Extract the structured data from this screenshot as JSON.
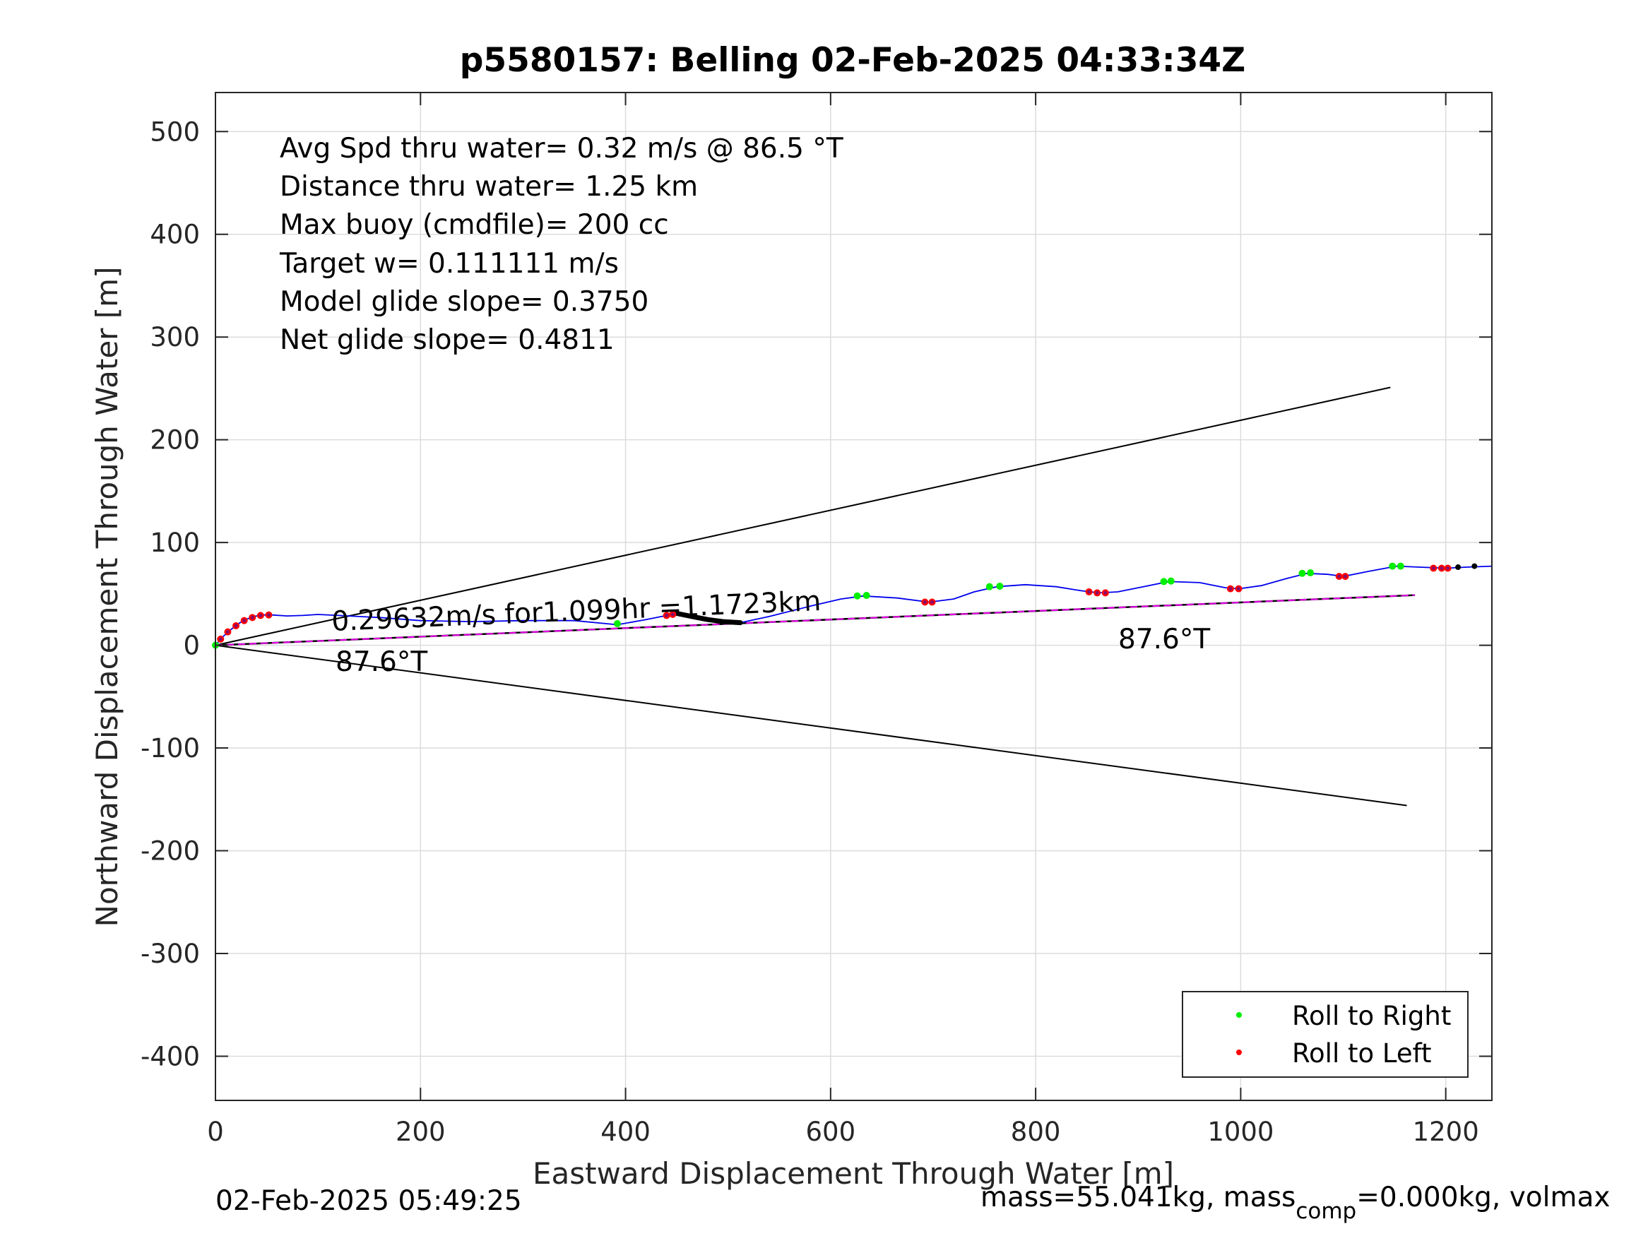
{
  "chart_data": {
    "type": "line",
    "title": "p5580157: Belling 02-Feb-2025 04:33:34Z",
    "xlabel": "Eastward Displacement Through Water [m]",
    "ylabel": "Northward Displacement Through Water [m]",
    "xlim": [
      0,
      1245
    ],
    "ylim": [
      -443,
      538
    ],
    "xticks": [
      0,
      200,
      400,
      600,
      800,
      1000,
      1200
    ],
    "yticks": [
      -400,
      -300,
      -200,
      -100,
      0,
      100,
      200,
      300,
      400,
      500
    ],
    "grid": true,
    "legend_position": "bottom-right",
    "info_lines": [
      "Avg Spd thru water=  0.32 m/s @  86.5 °T",
      "Distance thru water=  1.25 km",
      "Max buoy (cmdfile)= 200 cc",
      "Target w= 0.111111 m/s",
      "Model glide slope= 0.3750",
      "Net glide slope= 0.4811"
    ],
    "annotations": {
      "speed": "0.29632m/s for1.099hr =1.1723km",
      "heading_start": "87.6°T",
      "heading_end": "87.6°T"
    },
    "footer_left": "02-Feb-2025 05:49:25",
    "footer_right": {
      "prefix": "mass=55.041kg, mass",
      "subscript": "comp",
      "suffix": "=0.000kg, volmax"
    },
    "legend": [
      {
        "label": "Roll to Right",
        "color": "#00ee00"
      },
      {
        "label": "Roll to Left",
        "color": "#ff0000"
      }
    ],
    "colors": {
      "track": "#0000ee",
      "mean_heading": "#ee00ee",
      "roll_right": "#00ee00",
      "roll_left": "#ff0000",
      "cone": "#000000"
    },
    "series": [
      {
        "name": "track",
        "x": [
          0,
          8,
          16,
          24,
          32,
          40,
          48,
          55,
          70,
          85,
          100,
          120,
          140,
          160,
          200,
          250,
          300,
          350,
          392,
          420,
          445,
          470,
          490,
          512,
          540,
          580,
          610,
          632,
          665,
          696,
          720,
          740,
          762,
          790,
          820,
          845,
          862,
          880,
          905,
          930,
          960,
          985,
          998,
          1020,
          1045,
          1065,
          1085,
          1100,
          1125,
          1152,
          1175,
          1200,
          1220,
          1245
        ],
        "y": [
          0,
          9,
          16,
          22,
          26,
          28.5,
          29.5,
          29.5,
          28.5,
          29,
          30,
          29,
          28,
          27,
          24,
          23,
          24,
          24,
          20,
          25,
          30,
          27,
          23,
          22,
          28,
          38,
          45,
          48,
          46,
          42,
          45,
          52,
          57,
          59,
          57,
          53,
          51,
          52,
          57,
          62,
          61,
          56,
          55,
          58,
          65,
          70,
          69,
          67,
          72,
          77,
          76,
          75,
          76,
          77
        ]
      },
      {
        "name": "mean heading",
        "x": [
          0,
          1170
        ],
        "y": [
          0,
          48.8
        ]
      },
      {
        "name": "cone upper",
        "x": [
          0,
          1146
        ],
        "y": [
          0,
          251
        ]
      },
      {
        "name": "cone lower",
        "x": [
          0,
          1162
        ],
        "y": [
          0,
          -156
        ]
      },
      {
        "name": "black segment",
        "x": [
          450,
          465,
          480,
          495,
          512
        ],
        "y": [
          31,
          28,
          25,
          23,
          22
        ]
      }
    ],
    "roll_right": [
      [
        0,
        0
      ],
      [
        392,
        21
      ],
      [
        626,
        48
      ],
      [
        635,
        48.5
      ],
      [
        755,
        57
      ],
      [
        765,
        57.5
      ],
      [
        925,
        62
      ],
      [
        932,
        62.5
      ],
      [
        1060,
        70
      ],
      [
        1068,
        70.5
      ],
      [
        1148,
        77
      ],
      [
        1156,
        77
      ]
    ],
    "roll_left": [
      [
        5,
        6
      ],
      [
        12,
        13
      ],
      [
        20,
        19
      ],
      [
        28,
        24
      ],
      [
        36,
        27
      ],
      [
        44,
        29
      ],
      [
        52,
        29.5
      ],
      [
        440,
        29
      ],
      [
        446,
        30
      ],
      [
        692,
        42
      ],
      [
        699,
        42
      ],
      [
        852,
        52
      ],
      [
        860,
        51
      ],
      [
        868,
        51
      ],
      [
        990,
        55
      ],
      [
        998,
        55
      ],
      [
        1096,
        67
      ],
      [
        1102,
        67
      ],
      [
        1188,
        75
      ],
      [
        1196,
        75
      ],
      [
        1202,
        75
      ]
    ],
    "end_points": [
      [
        1212,
        76
      ],
      [
        1228,
        77
      ]
    ]
  }
}
